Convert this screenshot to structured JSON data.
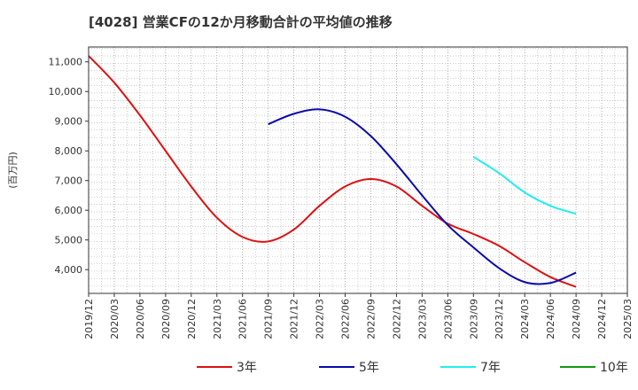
{
  "chart_data": {
    "type": "line",
    "title": "[4028]  営業CFの12か月移動合計の平均値の推移",
    "ylabel": "(百万円)",
    "xlabel": "",
    "ylim": [
      3200,
      11500
    ],
    "y_ticks": [
      4000,
      5000,
      6000,
      7000,
      8000,
      9000,
      10000,
      11000
    ],
    "y_tick_labels": [
      "4,000",
      "5,000",
      "6,000",
      "7,000",
      "8,000",
      "9,000",
      "10,000",
      "11,000"
    ],
    "x_ticks": [
      "2019/12",
      "2020/03",
      "2020/06",
      "2020/09",
      "2020/12",
      "2021/03",
      "2021/06",
      "2021/09",
      "2021/12",
      "2022/03",
      "2022/06",
      "2022/09",
      "2022/12",
      "2023/03",
      "2023/06",
      "2023/09",
      "2023/12",
      "2024/03",
      "2024/06",
      "2024/09",
      "2024/12",
      "2025/03"
    ],
    "grid": true,
    "legend_position": "bottom",
    "series": [
      {
        "name": "3年",
        "color": "#dd1111",
        "x": [
          "2019/12",
          "2020/03",
          "2020/06",
          "2020/09",
          "2020/12",
          "2021/03",
          "2021/06",
          "2021/09",
          "2021/12",
          "2022/03",
          "2022/06",
          "2022/09",
          "2022/12",
          "2023/03",
          "2023/06",
          "2023/09",
          "2023/12",
          "2024/03",
          "2024/06",
          "2024/09"
        ],
        "values": [
          11200,
          10300,
          9200,
          8000,
          6800,
          5750,
          5100,
          4950,
          5350,
          6150,
          6800,
          7050,
          6800,
          6150,
          5550,
          5200,
          4800,
          4250,
          3750,
          3420
        ]
      },
      {
        "name": "5年",
        "color": "#0a0aaa",
        "x": [
          "2021/09",
          "2021/12",
          "2022/03",
          "2022/06",
          "2022/09",
          "2022/12",
          "2023/03",
          "2023/06",
          "2023/09",
          "2023/12",
          "2024/03",
          "2024/06",
          "2024/09"
        ],
        "values": [
          8900,
          9250,
          9400,
          9150,
          8500,
          7550,
          6500,
          5500,
          4750,
          4050,
          3580,
          3550,
          3900
        ]
      },
      {
        "name": "7年",
        "color": "#22eeee",
        "x": [
          "2023/09",
          "2023/12",
          "2024/03",
          "2024/06",
          "2024/09"
        ],
        "values": [
          7800,
          7250,
          6600,
          6150,
          5880
        ]
      },
      {
        "name": "10年",
        "color": "#119911",
        "x": [],
        "values": []
      }
    ]
  }
}
